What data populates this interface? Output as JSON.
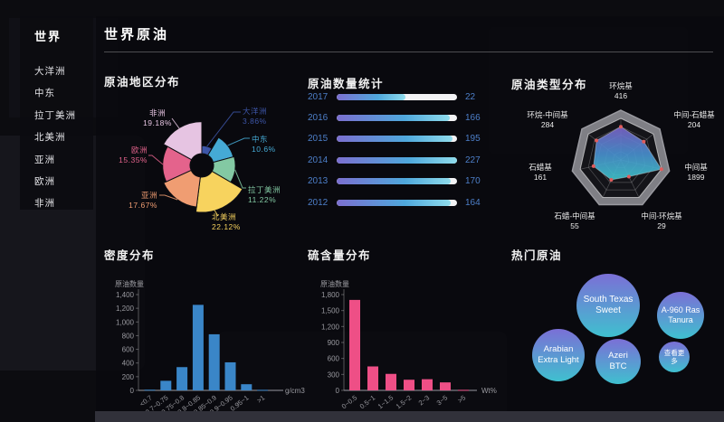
{
  "sidebar": {
    "title": "世界",
    "items": [
      "大洋洲",
      "中东",
      "拉丁美洲",
      "北美洲",
      "亚洲",
      "欧洲",
      "非洲"
    ]
  },
  "header": {
    "title": "世界原油"
  },
  "sections": {
    "region": {
      "title": "原油地区分布"
    },
    "quantity": {
      "title": "原油数量统计"
    },
    "type": {
      "title": "原油类型分布"
    },
    "density": {
      "title": "密度分布"
    },
    "sulfur": {
      "title": "硫含量分布"
    },
    "hot": {
      "title": "热门原油"
    }
  },
  "colors": {
    "accent_blue": "#4d7fc9",
    "pie": [
      "#3d56a8",
      "#45aad5",
      "#83c9a3",
      "#f7d35e",
      "#f09d72",
      "#e4638c",
      "#e6c4e2"
    ],
    "bar_gradient": [
      "#7b6fd0",
      "#4fa8dc",
      "#8fdcec"
    ],
    "track_white": "#f3f3f5",
    "density_bar": "#3a86c8",
    "sulfur_bar": "#ee4f86",
    "bubble_gradient": [
      "#7b6fd6",
      "#3fc0cf"
    ],
    "radar_dot": "#e05c5c",
    "axis_text": "#9a9aa0"
  },
  "chart_data": [
    {
      "id": "region_distribution",
      "type": "pie",
      "variant": "nightingale-rose",
      "title": "原油地区分布",
      "categories": [
        "大洋洲",
        "中东",
        "拉丁美洲",
        "北美洲",
        "亚洲",
        "欧洲",
        "非洲"
      ],
      "values": [
        3.86,
        10.6,
        11.22,
        22.12,
        17.67,
        15.35,
        19.18
      ],
      "display": [
        "3.86%",
        "10.6%",
        "11.22%",
        "22.12%",
        "17.67%",
        "15.35%",
        "19.18%"
      ],
      "unit": "%"
    },
    {
      "id": "quantity_by_year",
      "type": "bar",
      "orientation": "horizontal",
      "title": "原油数量统计",
      "categories": [
        "2017",
        "2016",
        "2015",
        "2014",
        "2013",
        "2012"
      ],
      "values": [
        22,
        166,
        195,
        227,
        170,
        164
      ],
      "fill_ratio": [
        0.57,
        0.94,
        0.96,
        1.0,
        0.95,
        0.95
      ]
    },
    {
      "id": "type_distribution",
      "type": "radar",
      "title": "原油类型分布",
      "categories": [
        "环烷基",
        "中间-石蜡基",
        "中间基",
        "中间-环烷基",
        "石蜡-中间基",
        "石蜡基",
        "环烷-中间基"
      ],
      "values": [
        416,
        204,
        1899,
        29,
        55,
        161,
        284
      ],
      "axis_max": 1899
    },
    {
      "id": "density_distribution",
      "type": "bar",
      "title": "密度分布",
      "ylabel": "原油数量",
      "xunit": "g/cm3",
      "categories": [
        "<0.7",
        "0.7~0.75",
        "0.75~0.8",
        "0.8~0.85",
        "0.85~0.9",
        "0.9~0.95",
        "0.95~1",
        ">1"
      ],
      "values": [
        10,
        140,
        340,
        1250,
        820,
        410,
        90,
        8
      ],
      "ylim": [
        0,
        1400
      ],
      "ystep": 200
    },
    {
      "id": "sulfur_distribution",
      "type": "bar",
      "title": "硫含量分布",
      "ylabel": "原油数量",
      "xunit": "Wt%",
      "categories": [
        "0~0.5",
        "0.5~1",
        "1~1.5",
        "1.5~2",
        "2~3",
        "3~5",
        ">5"
      ],
      "values": [
        1700,
        450,
        310,
        200,
        210,
        150,
        10
      ],
      "ylim": [
        0,
        1800
      ],
      "ystep": 300
    },
    {
      "id": "hot_oils",
      "type": "bubble",
      "title": "热门原油",
      "items": [
        "South Texas Sweet",
        "A-960 Ras Tanura",
        "Arabian Extra Light",
        "Azeri BTC",
        "查看更多"
      ]
    }
  ]
}
